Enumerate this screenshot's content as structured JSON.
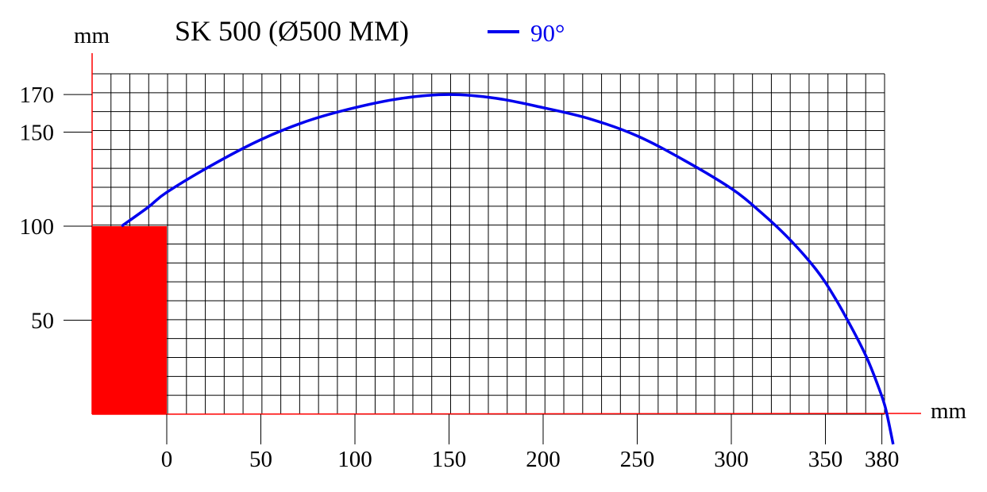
{
  "chart_data": {
    "type": "line",
    "title": "SK 500 (Ø500 MM)",
    "xlabel": "mm",
    "ylabel": "mm",
    "xlim": [
      -40,
      380
    ],
    "ylim": [
      0,
      170
    ],
    "x_ticks": [
      0,
      50,
      100,
      150,
      200,
      250,
      300,
      350,
      380
    ],
    "y_ticks": [
      50,
      100,
      150,
      170
    ],
    "grid": true,
    "legend_position": "top",
    "series": [
      {
        "name": "90°",
        "color": "#0000ee",
        "x": [
          -24,
          -10,
          0,
          25,
          50,
          75,
          100,
          125,
          150,
          175,
          200,
          225,
          250,
          275,
          300,
          315,
          330,
          345,
          355,
          365,
          372,
          378,
          382,
          386
        ],
        "y": [
          100,
          110,
          118,
          133,
          146,
          156,
          163,
          168,
          170,
          168,
          163,
          157,
          148,
          135,
          120,
          108,
          94,
          77,
          62,
          44,
          30,
          15,
          3,
          -16
        ]
      }
    ],
    "annotations": [
      {
        "type": "rect",
        "x": [
          -40,
          0
        ],
        "y": [
          0,
          100
        ],
        "color": "#ff0000"
      }
    ]
  }
}
